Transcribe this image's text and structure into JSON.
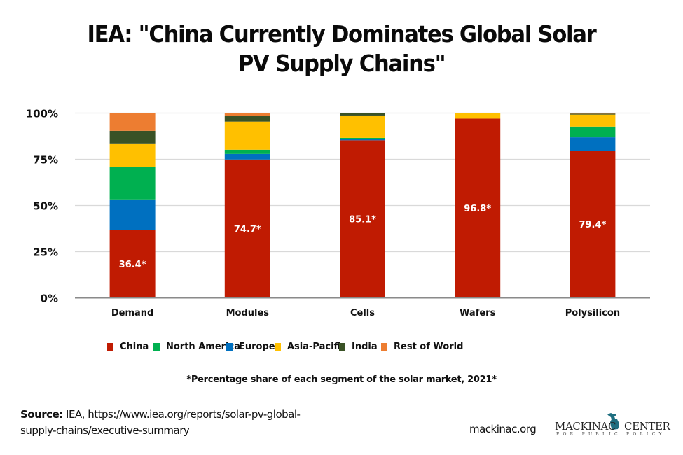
{
  "title": "IEA: \"China Currently Dominates Global Solar PV Supply Chains\"",
  "title_lines": [
    "IEA: \"China Currently Dominates Global Solar",
    "PV Supply Chains\""
  ],
  "chart_data": {
    "type": "bar",
    "stacked": true,
    "title": "IEA: \"China Currently Dominates Global Solar PV Supply Chains\"",
    "xlabel": "",
    "ylabel": "",
    "categories": [
      "Demand",
      "Modules",
      "Cells",
      "Wafers",
      "Polysilicon"
    ],
    "ylim": [
      0,
      100
    ],
    "yticks": [
      0,
      25,
      50,
      75,
      100
    ],
    "ytick_labels": [
      "0%",
      "25%",
      "50%",
      "75%",
      "100%"
    ],
    "grid": true,
    "legend_position": "bottom",
    "series": [
      {
        "name": "China",
        "color": "#C01B02",
        "values": [
          36.4,
          74.7,
          85.1,
          96.8,
          79.4
        ]
      },
      {
        "name": "Europe",
        "color": "#0070C0",
        "values": [
          16.7,
          3.0,
          0.6,
          0.0,
          7.3
        ]
      },
      {
        "name": "North America",
        "color": "#00B050",
        "values": [
          17.4,
          2.3,
          0.7,
          0.0,
          5.8
        ]
      },
      {
        "name": "Asia-Pacific",
        "color": "#FFC000",
        "values": [
          12.9,
          15.2,
          12.1,
          3.2,
          6.5
        ]
      },
      {
        "name": "India",
        "color": "#3A5226",
        "values": [
          6.8,
          3.0,
          1.5,
          0.0,
          0.5
        ]
      },
      {
        "name": "Rest of World",
        "color": "#ED7D31",
        "values": [
          9.8,
          1.8,
          0.0,
          0.0,
          0.5
        ]
      }
    ],
    "data_labels": [
      "36.4*",
      "74.7*",
      "85.1*",
      "96.8*",
      "79.4*"
    ],
    "data_label_series": "China"
  },
  "legend": [
    {
      "name": "China",
      "color": "#C01B02"
    },
    {
      "name": "North America",
      "color": "#00B050"
    },
    {
      "name": "Europe",
      "color": "#0070C0"
    },
    {
      "name": "Asia-Pacific",
      "color": "#FFC000"
    },
    {
      "name": "India",
      "color": "#3A5226"
    },
    {
      "name": "Rest of World",
      "color": "#ED7D31"
    }
  ],
  "note": "*Percentage share of each segment of the solar market, 2021*",
  "source": {
    "label": "Source:",
    "text_line1": " IEA, https://www.iea.org/reports/solar-pv-global-",
    "text_line2": "supply-chains/executive-summary"
  },
  "site": "mackinac.org",
  "logo": {
    "left": "MACKINAC",
    "right": "CENTER",
    "tagline": "FOR PUBLIC POLICY",
    "icon_color": "#1E6E80"
  }
}
